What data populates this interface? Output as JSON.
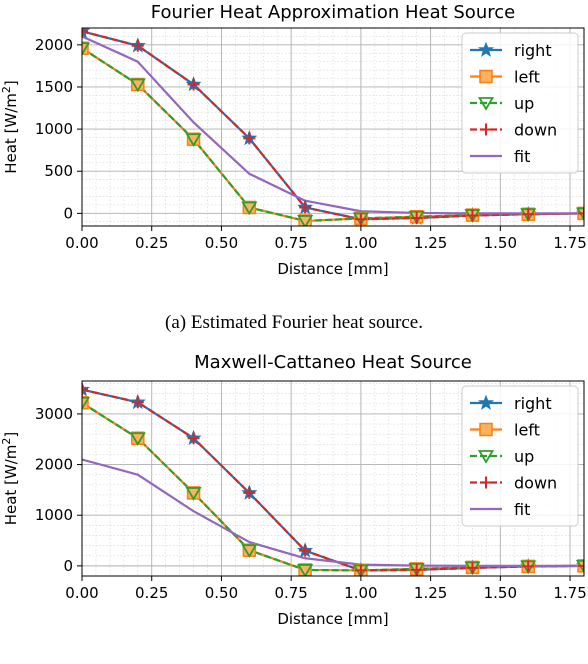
{
  "chart_data": [
    {
      "type": "line",
      "title": "Fourier Heat Approximation Heat Source",
      "xlabel": "Distance [mm]",
      "ylabel": "Heat [W/m",
      "ylabel_sup": "2",
      "ylabel_end": "]",
      "xlim": [
        0,
        1.8
      ],
      "ylim": [
        -150,
        2200
      ],
      "xticks": [
        "0.00",
        "0.25",
        "0.50",
        "0.75",
        "1.00",
        "1.25",
        "1.50",
        "1.75"
      ],
      "xtick_values": [
        0,
        0.25,
        0.5,
        0.75,
        1.0,
        1.25,
        1.5,
        1.75
      ],
      "yticks": [
        "0",
        "500",
        "1000",
        "1500",
        "2000"
      ],
      "ytick_values": [
        0,
        500,
        1000,
        1500,
        2000
      ],
      "grid": true,
      "legend_position": "top-right",
      "caption": "(a) Estimated Fourier heat source.",
      "x": [
        0,
        0.2,
        0.4,
        0.6,
        0.8,
        1.0,
        1.2,
        1.4,
        1.6,
        1.8
      ],
      "series": [
        {
          "name": "right",
          "color": "#1f77b4",
          "marker": "star",
          "dash": "solid",
          "values": [
            2160,
            1990,
            1530,
            890,
            70,
            -70,
            -55,
            -25,
            -10,
            0
          ]
        },
        {
          "name": "left",
          "color": "#ff7f0e",
          "marker": "square",
          "dash": "solid",
          "values": [
            1960,
            1530,
            880,
            70,
            -90,
            -60,
            -40,
            -20,
            -10,
            0
          ]
        },
        {
          "name": "up",
          "color": "#2ca02c",
          "marker": "triangle-down",
          "dash": "dashed",
          "values": [
            1960,
            1530,
            880,
            70,
            -90,
            -60,
            -40,
            -20,
            -10,
            0
          ]
        },
        {
          "name": "down",
          "color": "#d62728",
          "marker": "plus",
          "dash": "dashed",
          "values": [
            2160,
            1990,
            1530,
            890,
            70,
            -70,
            -55,
            -25,
            -10,
            0
          ]
        },
        {
          "name": "fit",
          "color": "#9467bd",
          "marker": "none",
          "dash": "solid",
          "values": [
            2100,
            1800,
            1080,
            470,
            150,
            25,
            5,
            0,
            0,
            0
          ]
        }
      ]
    },
    {
      "type": "line",
      "title": "Maxwell-Cattaneo Heat Source",
      "xlabel": "Distance [mm]",
      "ylabel": "Heat [W/m",
      "ylabel_sup": "2",
      "ylabel_end": "]",
      "xlim": [
        0,
        1.8
      ],
      "ylim": [
        -200,
        3650
      ],
      "xticks": [
        "0.00",
        "0.25",
        "0.50",
        "0.75",
        "1.00",
        "1.25",
        "1.50",
        "1.75"
      ],
      "xtick_values": [
        0,
        0.25,
        0.5,
        0.75,
        1.0,
        1.25,
        1.5,
        1.75
      ],
      "yticks": [
        "0",
        "1000",
        "2000",
        "3000"
      ],
      "ytick_values": [
        0,
        1000,
        2000,
        3000
      ],
      "grid": true,
      "legend_position": "top-right",
      "x": [
        0,
        0.2,
        0.4,
        0.6,
        0.8,
        1.0,
        1.2,
        1.4,
        1.6,
        1.8
      ],
      "series": [
        {
          "name": "right",
          "color": "#1f77b4",
          "marker": "star",
          "dash": "solid",
          "values": [
            3480,
            3230,
            2520,
            1440,
            300,
            -90,
            -80,
            -40,
            -10,
            0
          ]
        },
        {
          "name": "left",
          "color": "#ff7f0e",
          "marker": "square",
          "dash": "solid",
          "values": [
            3220,
            2520,
            1440,
            310,
            -80,
            -90,
            -60,
            -30,
            -10,
            0
          ]
        },
        {
          "name": "up",
          "color": "#2ca02c",
          "marker": "triangle-down",
          "dash": "dashed",
          "values": [
            3220,
            2520,
            1440,
            310,
            -80,
            -90,
            -60,
            -30,
            -10,
            0
          ]
        },
        {
          "name": "down",
          "color": "#d62728",
          "marker": "plus",
          "dash": "dashed",
          "values": [
            3480,
            3230,
            2520,
            1440,
            300,
            -90,
            -80,
            -40,
            -10,
            0
          ]
        },
        {
          "name": "fit",
          "color": "#9467bd",
          "marker": "none",
          "dash": "solid",
          "values": [
            2100,
            1800,
            1080,
            470,
            150,
            25,
            5,
            0,
            0,
            0
          ]
        }
      ]
    }
  ]
}
